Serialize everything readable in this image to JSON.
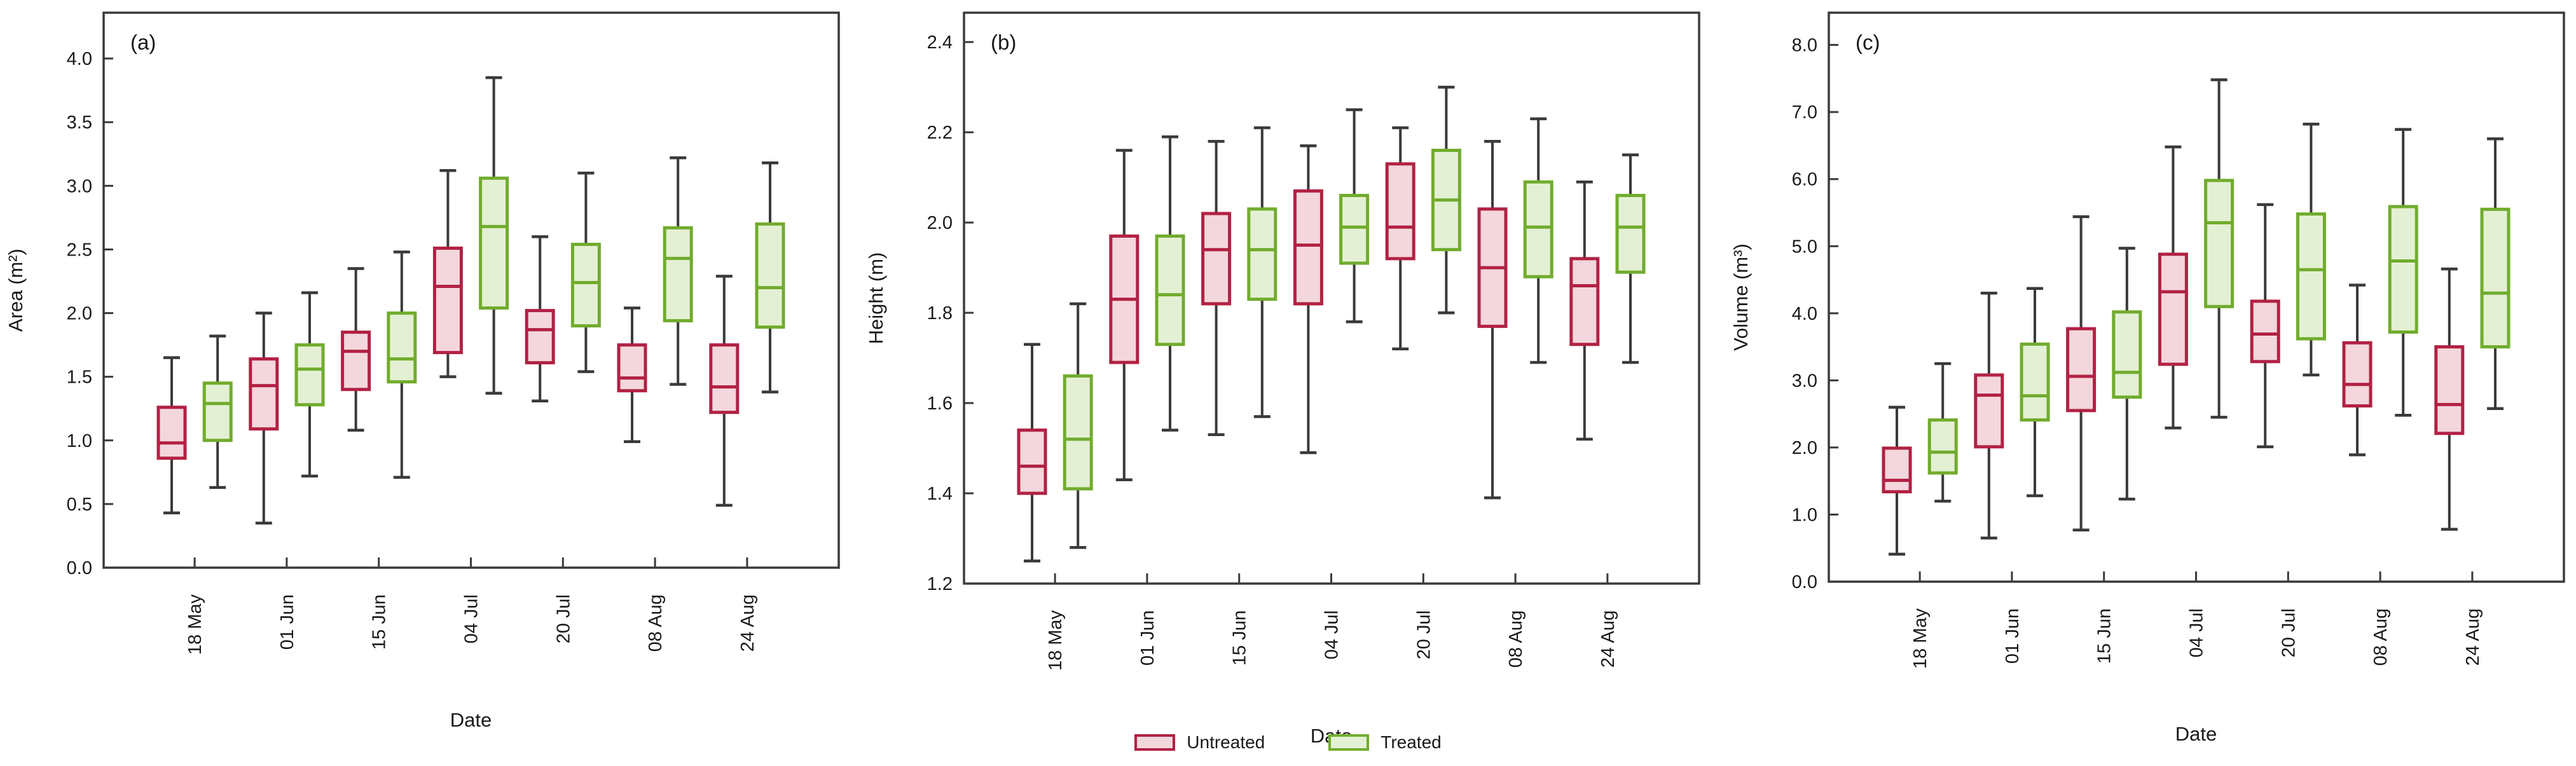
{
  "figure": {
    "xlabel": "Date",
    "categories": [
      "18 May",
      "01 Jun",
      "15 Jun",
      "04 Jul",
      "20 Jul",
      "08 Aug",
      "24 Aug"
    ]
  },
  "colors": {
    "untreated_stroke": "#b22143",
    "untreated_fill": "#f3d7dc",
    "treated_stroke": "#71ac2d",
    "treated_fill": "#e4f0d3",
    "axis": "#3a3a3a",
    "text": "#1a1a1a"
  },
  "legend": {
    "items": [
      {
        "name": "Untreated",
        "swatch": "untreated"
      },
      {
        "name": "Treated",
        "swatch": "treated"
      }
    ]
  },
  "chart_data": [
    {
      "type": "boxplot",
      "panel_label": "(a)",
      "ylabel": "Area (m²)",
      "xlabel": "Date",
      "categories": [
        "18 May",
        "01 Jun",
        "15 Jun",
        "04 Jul",
        "20 Jul",
        "08 Aug",
        "24 Aug"
      ],
      "ytick_labels": [
        "0.0",
        "0.5",
        "1.0",
        "1.5",
        "2.0",
        "2.5",
        "3.0",
        "3.5",
        "4.0"
      ],
      "yticks": [
        0,
        0.5,
        1.0,
        1.5,
        2.0,
        2.5,
        3.0,
        3.5,
        4.0
      ],
      "ylim": [
        0,
        4.36
      ],
      "grid": false,
      "box_format": [
        "whisker_low",
        "q1",
        "median",
        "q3",
        "whisker_high"
      ],
      "series": [
        {
          "name": "Untreated",
          "values": [
            [
              0.43,
              0.86,
              0.98,
              1.26,
              1.65
            ],
            [
              0.35,
              1.09,
              1.43,
              1.64,
              2.0
            ],
            [
              1.08,
              1.4,
              1.7,
              1.85,
              2.35
            ],
            [
              1.5,
              1.69,
              2.21,
              2.51,
              3.12
            ],
            [
              1.31,
              1.61,
              1.87,
              2.02,
              2.6
            ],
            [
              0.99,
              1.39,
              1.49,
              1.75,
              2.04
            ],
            [
              0.49,
              1.22,
              1.42,
              1.75,
              2.29
            ]
          ]
        },
        {
          "name": "Treated",
          "values": [
            [
              0.63,
              1.0,
              1.29,
              1.45,
              1.82
            ],
            [
              0.72,
              1.28,
              1.56,
              1.75,
              2.16
            ],
            [
              0.71,
              1.46,
              1.64,
              2.0,
              2.48
            ],
            [
              1.37,
              2.04,
              2.68,
              3.06,
              3.85
            ],
            [
              1.54,
              1.9,
              2.24,
              2.54,
              3.1
            ],
            [
              1.44,
              1.94,
              2.43,
              2.67,
              3.22
            ],
            [
              1.38,
              1.89,
              2.2,
              2.7,
              3.18
            ]
          ]
        }
      ]
    },
    {
      "type": "boxplot",
      "panel_label": "(b)",
      "ylabel": "Height (m)",
      "xlabel": "Date",
      "categories": [
        "18 May",
        "01 Jun",
        "15 Jun",
        "04 Jul",
        "20 Jul",
        "08 Aug",
        "24 Aug"
      ],
      "ytick_labels": [
        "1.2",
        "1.4",
        "1.6",
        "1.8",
        "2.0",
        "2.2",
        "2.4"
      ],
      "yticks": [
        1.2,
        1.4,
        1.6,
        1.8,
        2.0,
        2.2,
        2.4
      ],
      "ylim": [
        1.2,
        2.465
      ],
      "grid": false,
      "box_format": [
        "whisker_low",
        "q1",
        "median",
        "q3",
        "whisker_high"
      ],
      "series": [
        {
          "name": "Untreated",
          "values": [
            [
              1.25,
              1.4,
              1.46,
              1.54,
              1.73
            ],
            [
              1.43,
              1.69,
              1.83,
              1.97,
              2.16
            ],
            [
              1.53,
              1.82,
              1.94,
              2.02,
              2.18
            ],
            [
              1.49,
              1.82,
              1.95,
              2.07,
              2.17
            ],
            [
              1.72,
              1.92,
              1.99,
              2.13,
              2.21
            ],
            [
              1.39,
              1.77,
              1.9,
              2.03,
              2.18
            ],
            [
              1.52,
              1.73,
              1.86,
              1.92,
              2.09
            ]
          ]
        },
        {
          "name": "Treated",
          "values": [
            [
              1.28,
              1.41,
              1.52,
              1.66,
              1.82
            ],
            [
              1.54,
              1.73,
              1.84,
              1.97,
              2.19
            ],
            [
              1.57,
              1.83,
              1.94,
              2.03,
              2.21
            ],
            [
              1.78,
              1.91,
              1.99,
              2.06,
              2.25
            ],
            [
              1.8,
              1.94,
              2.05,
              2.16,
              2.3
            ],
            [
              1.69,
              1.88,
              1.99,
              2.09,
              2.23
            ],
            [
              1.69,
              1.89,
              1.99,
              2.06,
              2.15
            ]
          ]
        }
      ]
    },
    {
      "type": "boxplot",
      "panel_label": "(c)",
      "ylabel": "Volume (m³)",
      "xlabel": "Date",
      "categories": [
        "18 May",
        "01 Jun",
        "15 Jun",
        "04 Jul",
        "20 Jul",
        "08 Aug",
        "24 Aug"
      ],
      "ytick_labels": [
        "0.0",
        "1.0",
        "2.0",
        "3.0",
        "4.0",
        "5.0",
        "6.0",
        "7.0",
        "8.0"
      ],
      "yticks": [
        0,
        1,
        2,
        3,
        4,
        5,
        6,
        7,
        8
      ],
      "ylim": [
        0,
        8.48
      ],
      "grid": false,
      "box_format": [
        "whisker_low",
        "q1",
        "median",
        "q3",
        "whisker_high"
      ],
      "series": [
        {
          "name": "Untreated",
          "values": [
            [
              0.41,
              1.34,
              1.51,
              1.99,
              2.6
            ],
            [
              0.65,
              2.01,
              2.78,
              3.08,
              4.3
            ],
            [
              0.77,
              2.55,
              3.06,
              3.77,
              5.44
            ],
            [
              2.29,
              3.24,
              4.32,
              4.88,
              6.48
            ],
            [
              2.01,
              3.28,
              3.69,
              4.18,
              5.62
            ],
            [
              1.89,
              2.62,
              2.94,
              3.56,
              4.42
            ],
            [
              0.78,
              2.21,
              2.64,
              3.5,
              4.66
            ]
          ]
        },
        {
          "name": "Treated",
          "values": [
            [
              1.2,
              1.62,
              1.93,
              2.41,
              3.25
            ],
            [
              1.28,
              2.41,
              2.77,
              3.54,
              4.37
            ],
            [
              1.23,
              2.75,
              3.12,
              4.02,
              4.97
            ],
            [
              2.45,
              4.1,
              5.35,
              5.98,
              7.48
            ],
            [
              3.08,
              3.62,
              4.65,
              5.48,
              6.82
            ],
            [
              2.48,
              3.72,
              4.78,
              5.59,
              6.74
            ],
            [
              2.58,
              3.5,
              4.3,
              5.55,
              6.6
            ]
          ]
        }
      ]
    }
  ]
}
